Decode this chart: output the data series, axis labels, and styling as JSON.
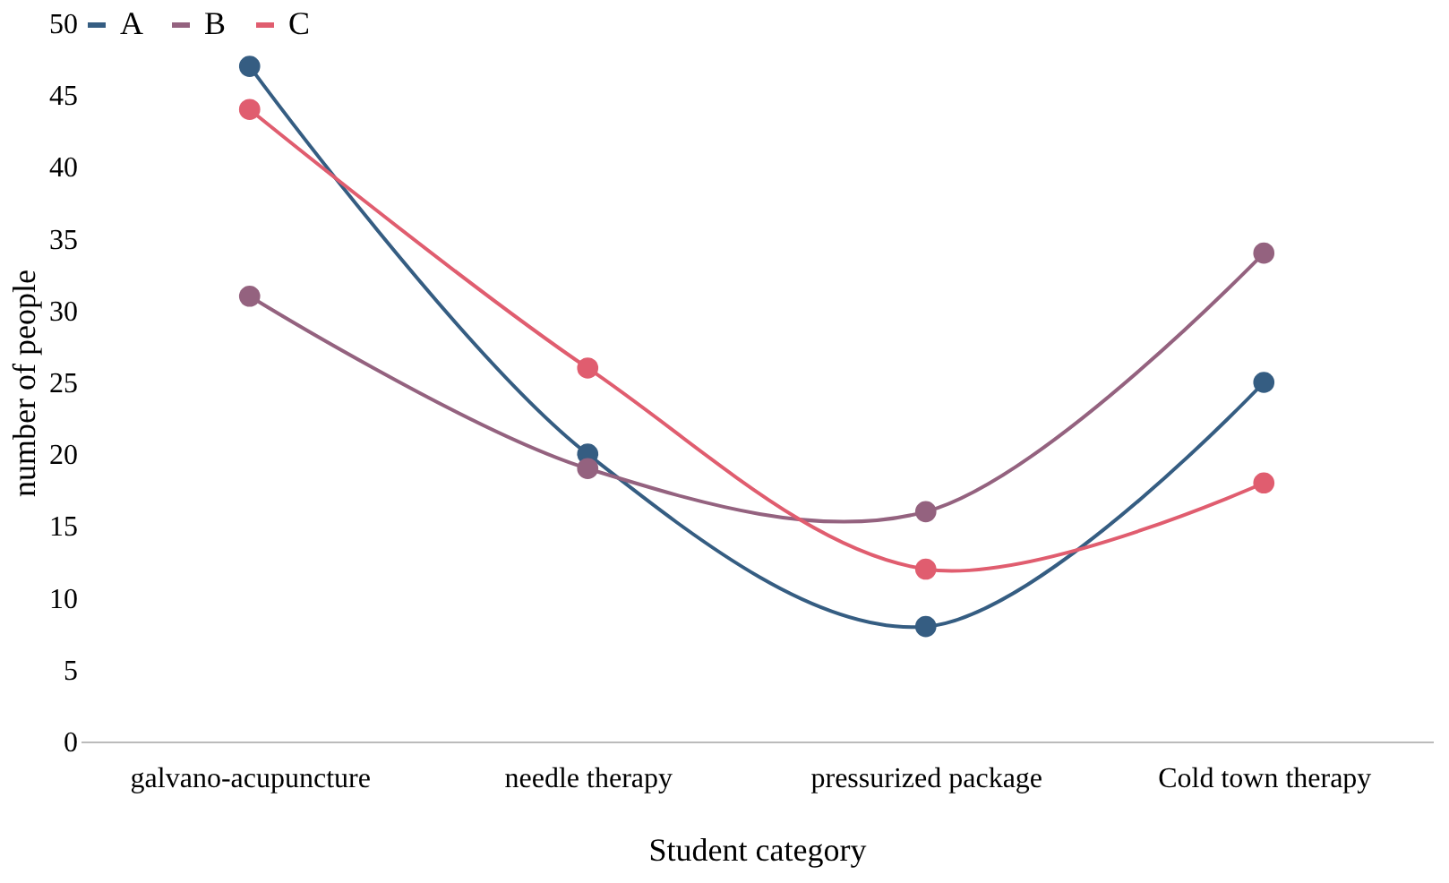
{
  "chart_data": {
    "type": "line",
    "xlabel": "Student category",
    "ylabel": "number of people",
    "categories": [
      "galvano-acupuncture",
      "needle therapy",
      "pressurized package",
      "Cold town therapy"
    ],
    "series": [
      {
        "name": "A",
        "color": "#355d82",
        "values": [
          47,
          20,
          8,
          25
        ]
      },
      {
        "name": "B",
        "color": "#94627f",
        "values": [
          31,
          19,
          16,
          34
        ]
      },
      {
        "name": "C",
        "color": "#e05d6f",
        "values": [
          44,
          26,
          12,
          18
        ]
      }
    ],
    "ylim": [
      0,
      50
    ],
    "yticks": [
      0,
      5,
      10,
      15,
      20,
      25,
      30,
      35,
      40,
      45,
      50
    ],
    "grid": false,
    "legend": "top",
    "marker": "circle",
    "line_style": "solid"
  }
}
